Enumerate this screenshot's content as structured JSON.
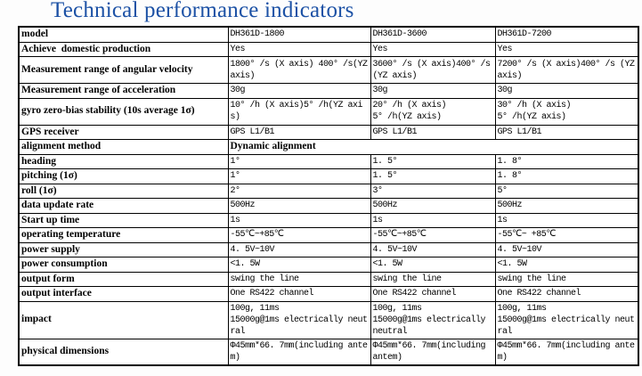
{
  "title": "Technical performance indicators",
  "accent_color": "#1c51a5",
  "table": {
    "rows": [
      {
        "label": "model",
        "values": [
          "DH361D-1800",
          "DH361D-3600",
          "DH361D-7200"
        ]
      },
      {
        "label": "Achieve  domestic production",
        "values": [
          "Yes",
          "Yes",
          "Yes"
        ]
      },
      {
        "label": "Measurement range of angular velocity",
        "values": [
          "1800° /s (X axis) 400° /s(YZ axis)",
          "3600° /s (X axis)400° /s(YZ axis)",
          "7200° /s (X axis)400° /s (YZ axis)"
        ]
      },
      {
        "label": "Measurement range of acceleration",
        "values": [
          "30g",
          "30g",
          "30g"
        ]
      },
      {
        "label": "gyro zero-bias stability (10s average 1σ)",
        "values": [
          "10° /h (X axis)5° /h(YZ axis)",
          "20° /h (X axis)\n5° /h(YZ axis)",
          "30° /h (X axis)\n5° /h(YZ axis)"
        ]
      },
      {
        "label": "GPS receiver",
        "values": [
          "GPS L1/B1",
          "GPS L1/B1",
          "GPS L1/B1"
        ]
      },
      {
        "label": "alignment method",
        "values": [
          "Dynamic alignment"
        ],
        "merged": true
      },
      {
        "label": "heading",
        "values": [
          "1°",
          "1. 5°",
          "1. 8°"
        ]
      },
      {
        "label": "pitching (1σ)",
        "values": [
          "1°",
          "1. 5°",
          "1. 8°"
        ]
      },
      {
        "label": "roll (1σ)",
        "values": [
          "2°",
          "3°",
          "5°"
        ]
      },
      {
        "label": "data update rate",
        "values": [
          "500Hz",
          "500Hz",
          "500Hz"
        ]
      },
      {
        "label": "Start up time",
        "values": [
          "1s",
          "1s",
          "1s"
        ]
      },
      {
        "label": "operating temperature",
        "values": [
          "-55℃~+85℃",
          "-55℃~+85℃",
          "-55℃~ +85℃"
        ]
      },
      {
        "label": "power supply",
        "values": [
          "4. 5V~10V",
          "4. 5V~10V",
          "4. 5V~10V"
        ]
      },
      {
        "label": "power consumption",
        "values": [
          "<1. 5W",
          "<1. 5W",
          "<1. 5W"
        ]
      },
      {
        "label": "output form",
        "values": [
          "swing the line",
          "swing the line",
          "swing the line"
        ]
      },
      {
        "label": "output interface",
        "values": [
          "One RS422 channel",
          "One RS422 channel",
          "One RS422 channel"
        ]
      },
      {
        "label": "impact",
        "values": [
          "100g, 11ms\n15000g@1ms electrically neutral",
          "100g, 11ms\n15000g@1ms electrically neutral",
          "100g, 11ms\n15000g@1ms electrically neutral"
        ]
      },
      {
        "label": "physical dimensions",
        "values": [
          "Φ45mm*66. 7mm(including antem)",
          "Φ45mm*66. 7mm(including antem)",
          "Φ45mm*66. 7mm(including antem)"
        ]
      }
    ]
  }
}
